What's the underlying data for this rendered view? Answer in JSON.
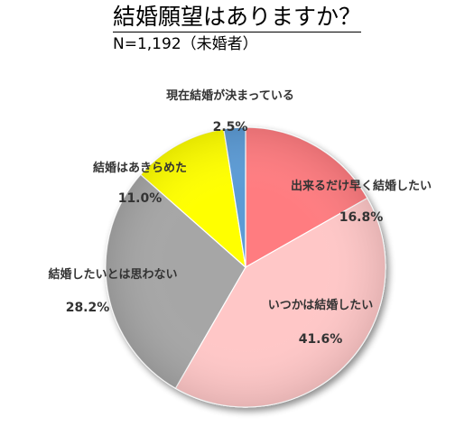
{
  "title": "結婚願望はありますか？",
  "subtitle": "N=1,192（未婚者）",
  "chart_data": {
    "type": "pie",
    "title": "結婚願望はありますか？",
    "subtitle": "N=1,192（未婚者）",
    "start_angle_deg": 0,
    "direction": "clockwise",
    "slices": [
      {
        "label": "出来るだけ早く結婚したい",
        "value": 16.8,
        "value_label": "16.8%",
        "color": "#FF7C80"
      },
      {
        "label": "いつかは結婚したい",
        "value": 41.6,
        "value_label": "41.6%",
        "color": "#FFC7C7"
      },
      {
        "label": "結婚したいとは思わない",
        "value": 28.2,
        "value_label": "28.2%",
        "color": "#A6A6A6"
      },
      {
        "label": "結婚はあきらめた",
        "value": 11.0,
        "value_label": "11.0%",
        "color": "#FFFF00"
      },
      {
        "label": "現在結婚が決まっている",
        "value": 2.5,
        "value_label": "2.5%",
        "color": "#5B9BD5"
      }
    ]
  }
}
